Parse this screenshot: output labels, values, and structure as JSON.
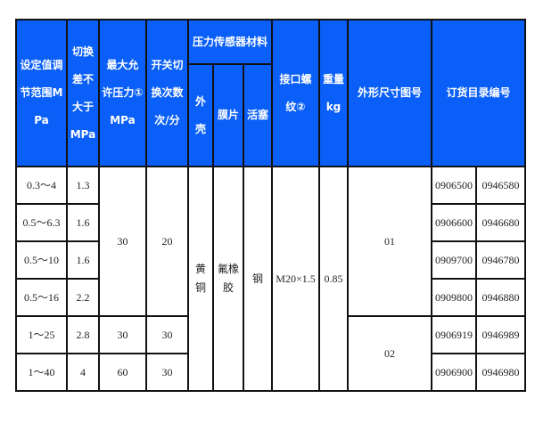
{
  "headers": {
    "range": "设定值调节范围MPa",
    "diff": "切换差不大于MPa",
    "max_pressure": "最大允许压力①MPa",
    "switch_freq": "开关切换次数次/分",
    "material": "压力传感器材料",
    "shell": "外壳",
    "membrane": "膜片",
    "piston": "活塞",
    "thread": "接口螺纹②",
    "weight": "重量kg",
    "drawing": "外形尺寸图号",
    "order": "订货目录编号"
  },
  "rows": [
    {
      "range": "0.3～4",
      "diff": "1.3",
      "code1": "0906500",
      "code2": "0946580"
    },
    {
      "range": "0.5～6.3",
      "diff": "1.6",
      "code1": "0906600",
      "code2": "0946680"
    },
    {
      "range": "0.5～10",
      "diff": "1.6",
      "code1": "0909700",
      "code2": "0946780"
    },
    {
      "range": "0.5～16",
      "diff": "2.2",
      "code1": "0909800",
      "code2": "0946880"
    },
    {
      "range": "1～25",
      "diff": "2.8",
      "max": "30",
      "freq": "30",
      "code1": "0906919",
      "code2": "0946989"
    },
    {
      "range": "1～40",
      "diff": "4",
      "max": "60",
      "freq": "30",
      "code1": "0906900",
      "code2": "0946980"
    }
  ],
  "group1": {
    "max": "30",
    "freq": "20",
    "drawing": "01"
  },
  "group2": {
    "drawing": "02"
  },
  "common": {
    "shell": "黄铜",
    "membrane": "氟橡胶",
    "piston": "钢",
    "thread": "M20×1.5",
    "weight": "0.85"
  },
  "colors": {
    "header_bg": "#0a5ff8",
    "header_text": "#ffffff",
    "border": "#111111"
  }
}
